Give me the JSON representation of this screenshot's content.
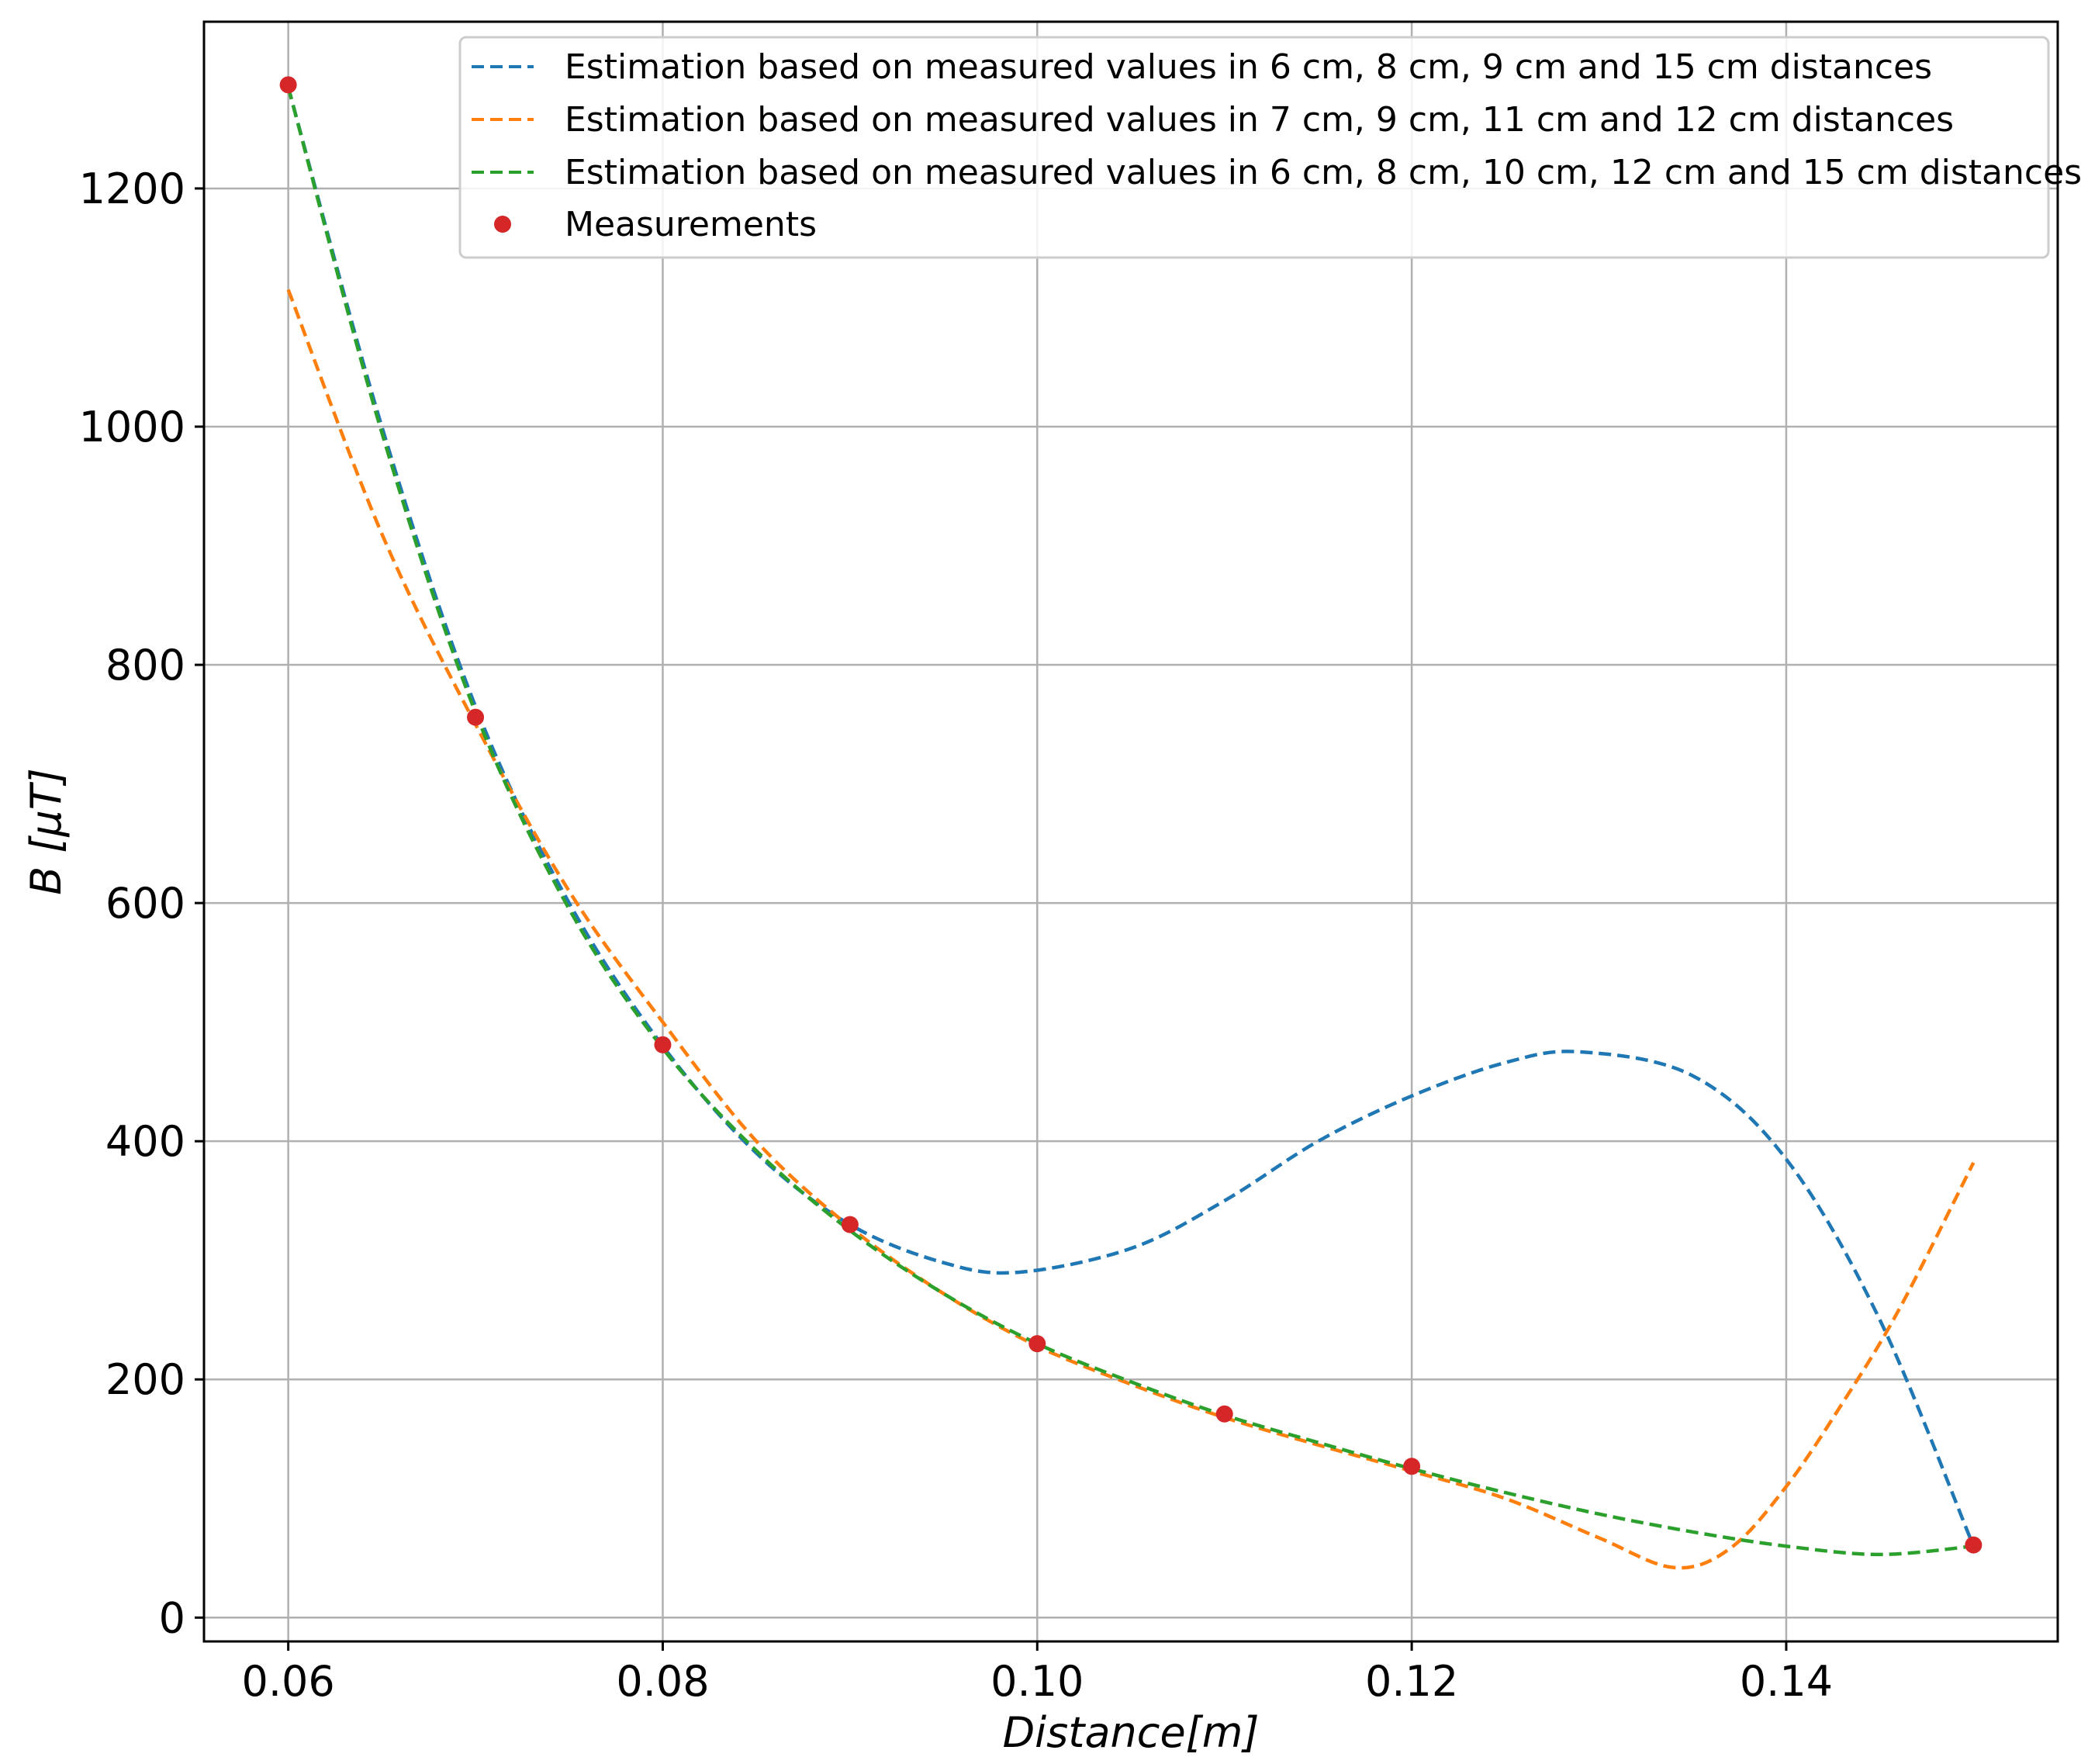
{
  "chart_data": {
    "type": "line",
    "xlabel": "Distance[m]",
    "ylabel": "B [μT]",
    "xlim": [
      0.0555,
      0.1545
    ],
    "ylim": [
      -20,
      1340
    ],
    "xticks": [
      0.06,
      0.08,
      0.1,
      0.12,
      0.14
    ],
    "xtick_labels": [
      "0.06",
      "0.08",
      "0.10",
      "0.12",
      "0.14"
    ],
    "yticks": [
      0,
      200,
      400,
      600,
      800,
      1000,
      1200
    ],
    "ytick_labels": [
      "0",
      "200",
      "400",
      "600",
      "800",
      "1000",
      "1200"
    ],
    "grid": true,
    "legend_position": "top-right",
    "series": [
      {
        "name": "Estimation based on measured values in 6 cm, 8 cm, 9 cm and 15 cm distances",
        "style": "dashed",
        "color": "#1f77b4",
        "x": [
          0.06,
          0.065,
          0.07,
          0.075,
          0.08,
          0.085,
          0.09,
          0.095,
          0.099,
          0.105,
          0.11,
          0.115,
          0.12,
          0.125,
          0.129,
          0.135,
          0.14,
          0.145,
          0.15
        ],
        "y": [
          1285,
          1000,
          765,
          600,
          480,
          390,
          330,
          298,
          290,
          310,
          350,
          400,
          438,
          466,
          475,
          455,
          385,
          250,
          60
        ]
      },
      {
        "name": "Estimation based on measured values in 7 cm, 9 cm, 11 cm and 12 cm distances",
        "style": "dashed",
        "color": "#ff7f0e",
        "x": [
          0.06,
          0.065,
          0.07,
          0.075,
          0.08,
          0.085,
          0.09,
          0.095,
          0.1,
          0.105,
          0.11,
          0.115,
          0.12,
          0.125,
          0.13,
          0.134,
          0.137,
          0.14,
          0.143,
          0.146,
          0.15
        ],
        "y": [
          1115,
          910,
          750,
          610,
          500,
          400,
          328,
          272,
          228,
          196,
          168,
          145,
          123,
          100,
          67,
          42,
          58,
          110,
          180,
          258,
          382
        ]
      },
      {
        "name": "Estimation based on measured values in 6 cm, 8 cm, 10 cm, 12 cm and 15 cm distances",
        "style": "dashed",
        "color": "#2ca02c",
        "x": [
          0.06,
          0.065,
          0.07,
          0.075,
          0.08,
          0.085,
          0.09,
          0.095,
          0.1,
          0.105,
          0.11,
          0.115,
          0.12,
          0.125,
          0.13,
          0.135,
          0.14,
          0.145,
          0.15
        ],
        "y": [
          1285,
          995,
          760,
          595,
          478,
          392,
          325,
          272,
          230,
          198,
          170,
          147,
          125,
          105,
          87,
          72,
          60,
          53,
          60
        ]
      },
      {
        "name": "Measurements",
        "style": "markers",
        "color": "#d62728",
        "x": [
          0.06,
          0.07,
          0.08,
          0.09,
          0.1,
          0.11,
          0.12,
          0.15
        ],
        "y": [
          1287,
          756,
          481,
          330,
          230,
          171,
          127,
          61
        ]
      }
    ]
  }
}
